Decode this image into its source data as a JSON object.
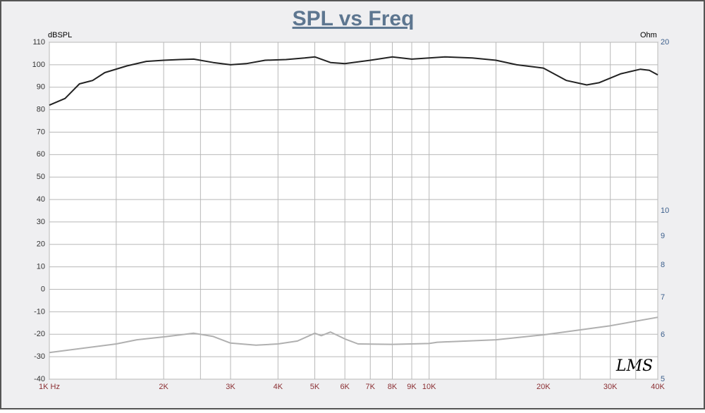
{
  "chart_data": {
    "type": "line",
    "title": "SPL vs Freq",
    "y_label": "dBSPL",
    "y2_label": "Ohm",
    "annotation": "LMS",
    "xscale": "log",
    "y2scale": "log",
    "grid": true,
    "xlim": [
      1000,
      40000
    ],
    "xticks": [
      {
        "value": 1000,
        "label": "1K Hz"
      },
      {
        "value": 2000,
        "label": "2K"
      },
      {
        "value": 3000,
        "label": "3K"
      },
      {
        "value": 4000,
        "label": "4K"
      },
      {
        "value": 5000,
        "label": "5K"
      },
      {
        "value": 6000,
        "label": "6K"
      },
      {
        "value": 7000,
        "label": "7K"
      },
      {
        "value": 8000,
        "label": "8K"
      },
      {
        "value": 9000,
        "label": "9K"
      },
      {
        "value": 10000,
        "label": "10K"
      },
      {
        "value": 20000,
        "label": "20K"
      },
      {
        "value": 30000,
        "label": "30K"
      },
      {
        "value": 40000,
        "label": "40K"
      }
    ],
    "x_minor_ticks": [
      1500,
      2500,
      15000,
      25000,
      35000
    ],
    "ylim": [
      -40,
      110
    ],
    "yticks": [
      -40,
      -30,
      -20,
      -10,
      0,
      10,
      20,
      30,
      40,
      50,
      60,
      70,
      80,
      90,
      100,
      110
    ],
    "y2lim": [
      5,
      20
    ],
    "y2ticks": [
      5,
      6,
      7,
      8,
      9,
      10,
      20
    ],
    "series": [
      {
        "color": "#222222",
        "x": [
          1000,
          1100,
          1200,
          1300,
          1400,
          1600,
          1800,
          2000,
          2200,
          2400,
          2700,
          3000,
          3300,
          3700,
          4200,
          4700,
          5000,
          5500,
          6000,
          7000,
          8000,
          9000,
          10000,
          11000,
          13000,
          15000,
          17000,
          20000,
          23000,
          26000,
          28000,
          32000,
          36000,
          38000,
          40000
        ],
        "values": [
          82,
          85,
          91.5,
          93,
          96.5,
          99.5,
          101.5,
          102,
          102.3,
          102.5,
          101,
          100,
          100.5,
          102,
          102.3,
          103,
          103.5,
          101,
          100.5,
          102,
          103.5,
          102.5,
          103,
          103.5,
          103,
          102,
          100,
          98.5,
          93,
          91,
          92,
          96,
          98,
          97.5,
          95.5
        ]
      },
      {
        "color": "#b0b0b0",
        "axis": "y2",
        "x": [
          1000,
          1500,
          1700,
          2000,
          2400,
          2700,
          3000,
          3500,
          4000,
          4500,
          5000,
          5200,
          5500,
          6000,
          6500,
          8000,
          10000,
          10500,
          15000,
          20000,
          30000,
          40000
        ],
        "values": [
          5.58,
          5.78,
          5.88,
          5.95,
          6.04,
          5.96,
          5.8,
          5.75,
          5.78,
          5.85,
          6.04,
          5.98,
          6.07,
          5.9,
          5.78,
          5.77,
          5.79,
          5.82,
          5.88,
          6.0,
          6.23,
          6.45
        ]
      }
    ]
  }
}
